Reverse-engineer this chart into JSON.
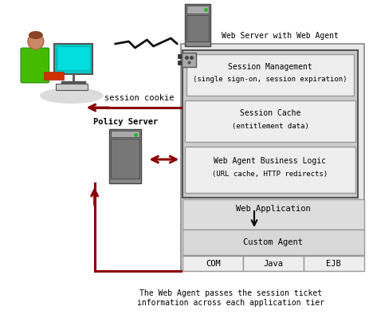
{
  "caption_line1": "The Web Agent passes the session ticket",
  "caption_line2": "information across each application tier",
  "web_server_label": "Web Server with Web Agent",
  "policy_server_label": "Policy Server",
  "session_cookie_label": "session cookie",
  "session_mgmt_label1": "Session Management",
  "session_mgmt_label2": "(single sign-on, session expiration)",
  "session_cache_label1": "Session Cache",
  "session_cache_label2": "(entitlement data)",
  "web_agent_bl_label1": "Web Agent Business Logic",
  "web_agent_bl_label2": "(URL cache, HTTP redirects)",
  "web_app_label": "Web Application",
  "custom_agent_label": "Custom Agent",
  "tiers": [
    "COM",
    "Java",
    "EJB"
  ],
  "arrow_color": "#8B0000",
  "background_color": "#FFFFFF"
}
